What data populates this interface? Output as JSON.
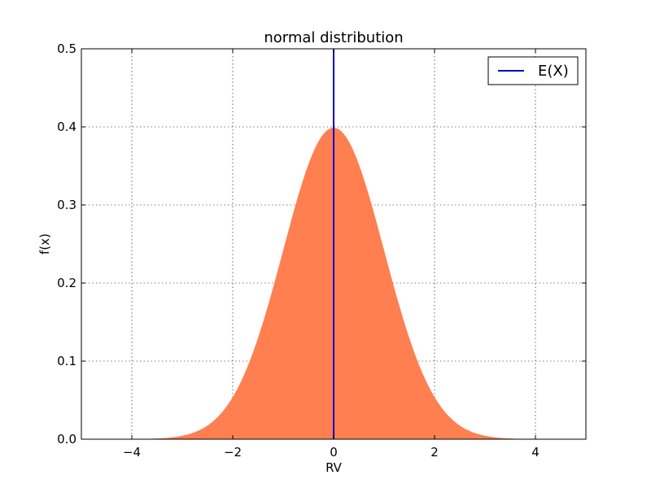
{
  "chart_data": {
    "type": "area",
    "title": "normal distribution",
    "xlabel": "RV",
    "ylabel": "f(x)",
    "xlim": [
      -5,
      5
    ],
    "ylim": [
      0,
      0.5
    ],
    "xticks": [
      -4,
      -2,
      0,
      2,
      4
    ],
    "xtick_labels": [
      "−4",
      "−2",
      "0",
      "2",
      "4"
    ],
    "yticks": [
      0.0,
      0.1,
      0.2,
      0.3,
      0.4,
      0.5
    ],
    "ytick_labels": [
      "0.0",
      "0.1",
      "0.2",
      "0.3",
      "0.4",
      "0.5"
    ],
    "grid": true,
    "series": [
      {
        "name": "f(x)",
        "kind": "filled-area",
        "distribution": "normal",
        "mean": 0,
        "std": 1,
        "color": "#ff7f50"
      },
      {
        "name": "E(X)",
        "kind": "vertical-line",
        "x": 0,
        "color": "#0000cc"
      }
    ],
    "legend": {
      "position": "top-right",
      "entries": [
        {
          "label": "E(X)",
          "color": "#0000cc"
        }
      ]
    }
  }
}
